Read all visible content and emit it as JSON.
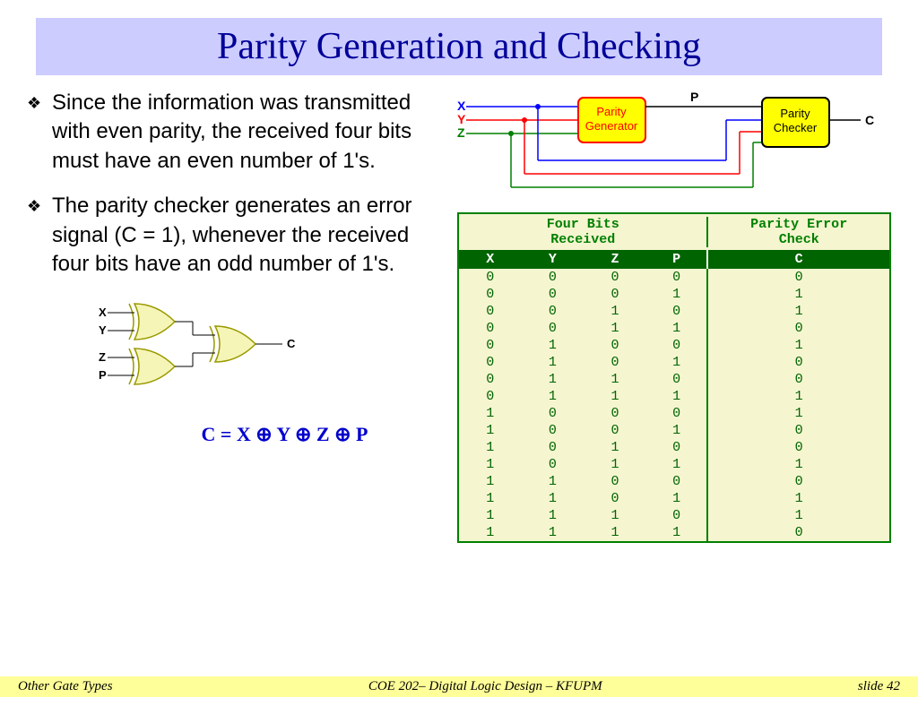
{
  "title": "Parity Generation and Checking",
  "bullets": [
    "Since the information was transmitted with even parity, the received four bits must have an even number of 1's.",
    "The parity checker generates an error signal (C = 1), whenever the received four bits have an odd number of 1's."
  ],
  "equation": "C = X ⊕ Y ⊕ Z ⊕ P",
  "block_diagram": {
    "inputs": [
      "X",
      "Y",
      "Z"
    ],
    "input_colors": [
      "#0000ff",
      "#ff0000",
      "#008000"
    ],
    "generator_label": "Parity Generator",
    "generator_bg": "#ffff00",
    "generator_border": "#ff0000",
    "generator_text": "#ff0000",
    "p_label": "P",
    "checker_label": "Parity Checker",
    "checker_bg": "#ffff00",
    "checker_border": "#000000",
    "output_label": "C"
  },
  "xor_gates": {
    "inputs": [
      "X",
      "Y",
      "Z",
      "P"
    ],
    "output": "C",
    "gate_fill": "#f5f5b8",
    "gate_stroke": "#999900"
  },
  "truth_table": {
    "header_left": "Four Bits Received",
    "header_right": "Parity Error Check",
    "columns": [
      "X",
      "Y",
      "Z",
      "P",
      "C"
    ],
    "rows": [
      [
        "0",
        "0",
        "0",
        "0",
        "0"
      ],
      [
        "0",
        "0",
        "0",
        "1",
        "1"
      ],
      [
        "0",
        "0",
        "1",
        "0",
        "1"
      ],
      [
        "0",
        "0",
        "1",
        "1",
        "0"
      ],
      [
        "0",
        "1",
        "0",
        "0",
        "1"
      ],
      [
        "0",
        "1",
        "0",
        "1",
        "0"
      ],
      [
        "0",
        "1",
        "1",
        "0",
        "0"
      ],
      [
        "0",
        "1",
        "1",
        "1",
        "1"
      ],
      [
        "1",
        "0",
        "0",
        "0",
        "1"
      ],
      [
        "1",
        "0",
        "0",
        "1",
        "0"
      ],
      [
        "1",
        "0",
        "1",
        "0",
        "0"
      ],
      [
        "1",
        "0",
        "1",
        "1",
        "1"
      ],
      [
        "1",
        "1",
        "0",
        "0",
        "0"
      ],
      [
        "1",
        "1",
        "0",
        "1",
        "1"
      ],
      [
        "1",
        "1",
        "1",
        "0",
        "1"
      ],
      [
        "1",
        "1",
        "1",
        "1",
        "0"
      ]
    ],
    "border_color": "#008000",
    "bg_color": "#f5f5d0",
    "header_bg": "#006400"
  },
  "footer": {
    "left": "Other Gate Types",
    "center": "COE 202– Digital Logic  Design – KFUPM",
    "right": "slide 42"
  },
  "colors": {
    "title_bg": "#ccccff",
    "title_text": "#000099",
    "footer_bg": "#ffff99"
  }
}
